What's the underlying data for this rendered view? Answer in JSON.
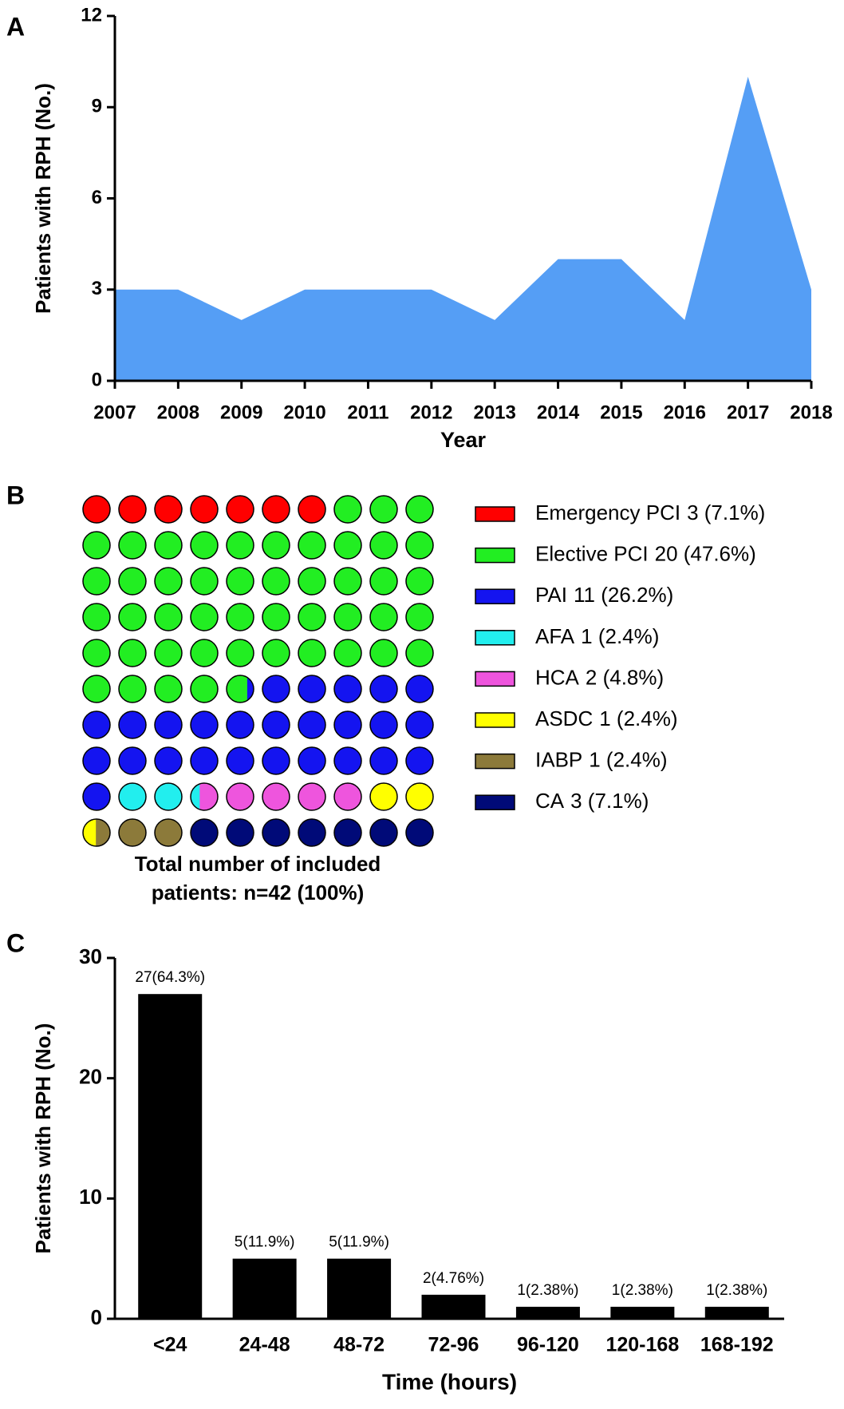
{
  "chart_data": [
    {
      "type": "area",
      "panel": "A",
      "x": [
        2007,
        2008,
        2009,
        2010,
        2011,
        2012,
        2013,
        2014,
        2015,
        2016,
        2017,
        2018
      ],
      "values": [
        3,
        3,
        2,
        3,
        3,
        3,
        2,
        4,
        4,
        2,
        10,
        3
      ],
      "color": "#559ef5",
      "xlim": [
        2007,
        2018
      ],
      "xticks": [
        2007,
        2008,
        2009,
        2010,
        2011,
        2012,
        2013,
        2014,
        2015,
        2016,
        2017,
        2018
      ],
      "ylim": [
        0,
        12
      ],
      "yticks": [
        0,
        3,
        6,
        9,
        12
      ],
      "x_label": "Year",
      "y_label": "Patients with RPH (No.)"
    },
    {
      "type": "waffle",
      "panel": "B",
      "categories": [
        "Emergency PCI",
        "Elective PCI",
        "PAI",
        "AFA",
        "HCA",
        "ASDC",
        "IABP",
        "CA"
      ],
      "values": [
        3,
        20,
        11,
        1,
        2,
        1,
        1,
        3
      ],
      "value_labels": [
        "3 (7.1%)",
        "20 (47.6%)",
        "11 (26.2%)",
        "1 (2.4%)",
        "2 (4.8%)",
        "1 (2.4%)",
        "1 (2.4%)",
        "3 (7.1%)"
      ],
      "colors": [
        "#ff0000",
        "#22ee22",
        "#1414f0",
        "#22eeee",
        "#ee55dd",
        "#ffff00",
        "#8c7a3a",
        "#000a78"
      ],
      "note_lines": [
        "Total number of included",
        "patients: n=42 (100%)"
      ]
    },
    {
      "type": "bar",
      "panel": "C",
      "categories": [
        "<24",
        "24-48",
        "48-72",
        "72-96",
        "96-120",
        "120-168",
        "168-192"
      ],
      "values": [
        27,
        5,
        5,
        2,
        1,
        1,
        1
      ],
      "value_labels": [
        "27(64.3%)",
        "5(11.9%)",
        "5(11.9%)",
        "2(4.76%)",
        "1(2.38%)",
        "1(2.38%)",
        "1(2.38%)"
      ],
      "color": "#000000",
      "ylim": [
        0,
        30
      ],
      "yticks": [
        0,
        10,
        20,
        30
      ],
      "x_label": "Time (hours)",
      "y_label": "Patients with RPH (No.)"
    }
  ]
}
